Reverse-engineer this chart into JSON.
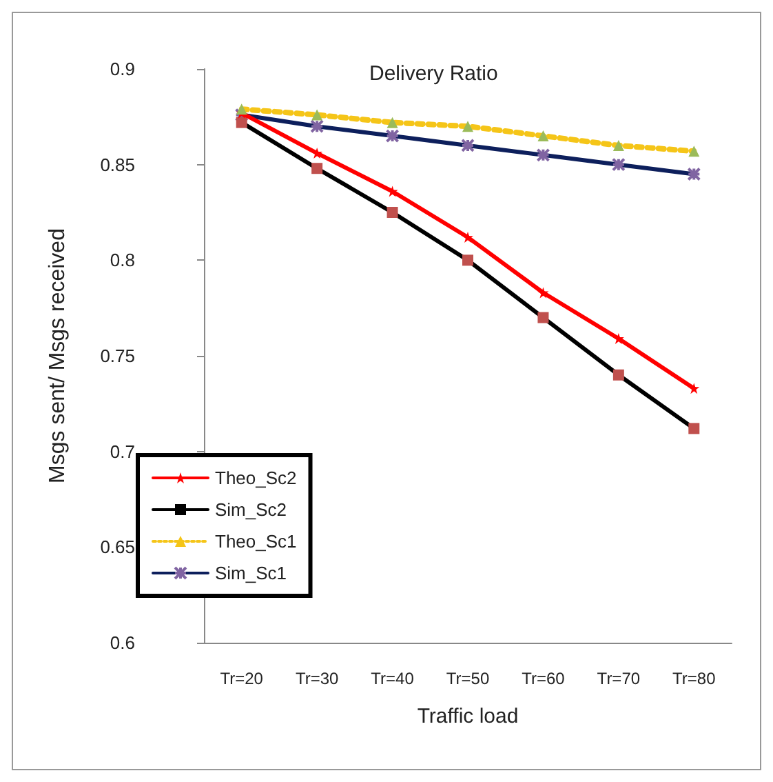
{
  "chart_data": {
    "type": "line",
    "title": "Delivery Ratio",
    "xlabel": "Traffic load",
    "ylabel": "Msgs sent/ Msgs received",
    "categories": [
      "Tr=20",
      "Tr=30",
      "Tr=40",
      "Tr=50",
      "Tr=60",
      "Tr=70",
      "Tr=80"
    ],
    "series": [
      {
        "name": "Theo_Sc2",
        "color": "#ff0000",
        "marker": "star",
        "line_style": "solid",
        "values": [
          0.877,
          0.856,
          0.836,
          0.812,
          0.783,
          0.759,
          0.733
        ]
      },
      {
        "name": "Sim_Sc2",
        "color": "#000000",
        "marker": "square",
        "line_style": "solid",
        "values": [
          0.872,
          0.848,
          0.825,
          0.8,
          0.77,
          0.74,
          0.712
        ]
      },
      {
        "name": "Theo_Sc1",
        "color": "#f5c518",
        "marker": "triangle",
        "line_style": "dotted",
        "values": [
          0.879,
          0.876,
          0.872,
          0.87,
          0.865,
          0.86,
          0.857
        ]
      },
      {
        "name": "Sim_Sc1",
        "color": "#0d1f5c",
        "marker": "cross",
        "line_style": "solid",
        "values": [
          0.876,
          0.87,
          0.865,
          0.86,
          0.855,
          0.85,
          0.845
        ]
      }
    ],
    "ylim": [
      0.6,
      0.9
    ],
    "yticks": [
      0.6,
      0.65,
      0.7,
      0.75,
      0.8,
      0.85,
      0.9
    ],
    "grid": false,
    "legend": "bottom left"
  }
}
